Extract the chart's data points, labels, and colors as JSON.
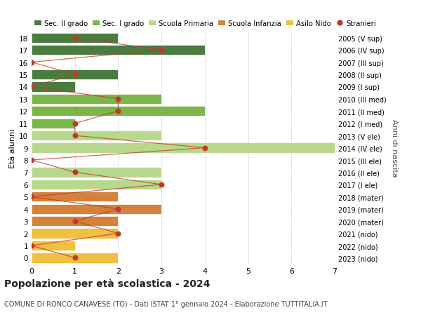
{
  "ages": [
    18,
    17,
    16,
    15,
    14,
    13,
    12,
    11,
    10,
    9,
    8,
    7,
    6,
    5,
    4,
    3,
    2,
    1,
    0
  ],
  "anni_nascita": [
    "2005 (V sup)",
    "2006 (IV sup)",
    "2007 (III sup)",
    "2008 (II sup)",
    "2009 (I sup)",
    "2010 (III med)",
    "2011 (II med)",
    "2012 (I med)",
    "2013 (V ele)",
    "2014 (IV ele)",
    "2015 (III ele)",
    "2016 (II ele)",
    "2017 (I ele)",
    "2018 (mater)",
    "2019 (mater)",
    "2020 (mater)",
    "2021 (nido)",
    "2022 (nido)",
    "2023 (nido)"
  ],
  "bar_values": [
    2,
    4,
    0,
    2,
    1,
    3,
    4,
    1,
    3,
    7,
    0,
    3,
    3,
    2,
    3,
    2,
    2,
    1,
    2
  ],
  "bar_colors": [
    "#4a7c3f",
    "#4a7c3f",
    "#4a7c3f",
    "#4a7c3f",
    "#4a7c3f",
    "#7ab648",
    "#7ab648",
    "#7ab648",
    "#b8d98d",
    "#b8d98d",
    "#b8d98d",
    "#b8d98d",
    "#b8d98d",
    "#d4813a",
    "#d4813a",
    "#d4813a",
    "#f0c040",
    "#f0c040",
    "#f0c040"
  ],
  "stranieri_x": [
    1,
    3,
    0,
    1,
    0,
    2,
    2,
    1,
    1,
    4,
    0,
    1,
    3,
    0,
    2,
    1,
    2,
    0,
    1
  ],
  "stranieri_color": "#c0392b",
  "title": "Popolazione per età scolastica - 2024",
  "subtitle": "COMUNE DI RONCO CANAVESE (TO) - Dati ISTAT 1° gennaio 2024 - Elaborazione TUTTITALIA.IT",
  "ylabel_left": "Età alunni",
  "ylabel_right": "Anni di nascita",
  "xlim": [
    0,
    7
  ],
  "ylim": [
    -0.5,
    18.5
  ],
  "legend_labels": [
    "Sec. II grado",
    "Sec. I grado",
    "Scuola Primaria",
    "Scuola Infanzia",
    "Asilo Nido",
    "Stranieri"
  ],
  "legend_colors": [
    "#4a7c3f",
    "#7ab648",
    "#b8d98d",
    "#d4813a",
    "#f0c040",
    "#c0392b"
  ],
  "bg_color": "#ffffff",
  "grid_color": "#cccccc",
  "bar_height": 0.82
}
